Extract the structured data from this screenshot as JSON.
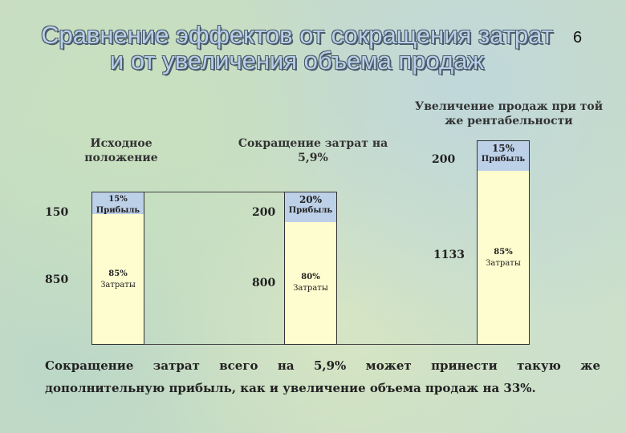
{
  "slide": {
    "title": "Сравнение эффектов от сокращения затрат и от увеличения объема продаж",
    "number": "6",
    "footer": "Сокращение затрат всего на 5,9% может принести такую же дополнительную прибыль, как и увеличение объема продаж на 33%."
  },
  "chart_data": {
    "type": "bar",
    "categories": [
      "Исходное положение",
      "Сокращение затрат на 5,9%",
      "Увеличение продаж при той же рентабельности"
    ],
    "series": [
      {
        "name": "Затраты",
        "values": [
          850,
          800,
          1133
        ],
        "percent_labels": [
          "85%",
          "80%",
          "85%"
        ]
      },
      {
        "name": "Прибыль",
        "values": [
          150,
          200,
          200
        ],
        "percent_labels": [
          "15%",
          "20%",
          "15%"
        ]
      }
    ],
    "labels": {
      "profit": [
        "150",
        "200",
        "200"
      ],
      "cost": [
        "850",
        "800",
        "1133"
      ]
    },
    "colors": {
      "cost": "#fefdcf",
      "profit": "#bcd0e8"
    }
  }
}
